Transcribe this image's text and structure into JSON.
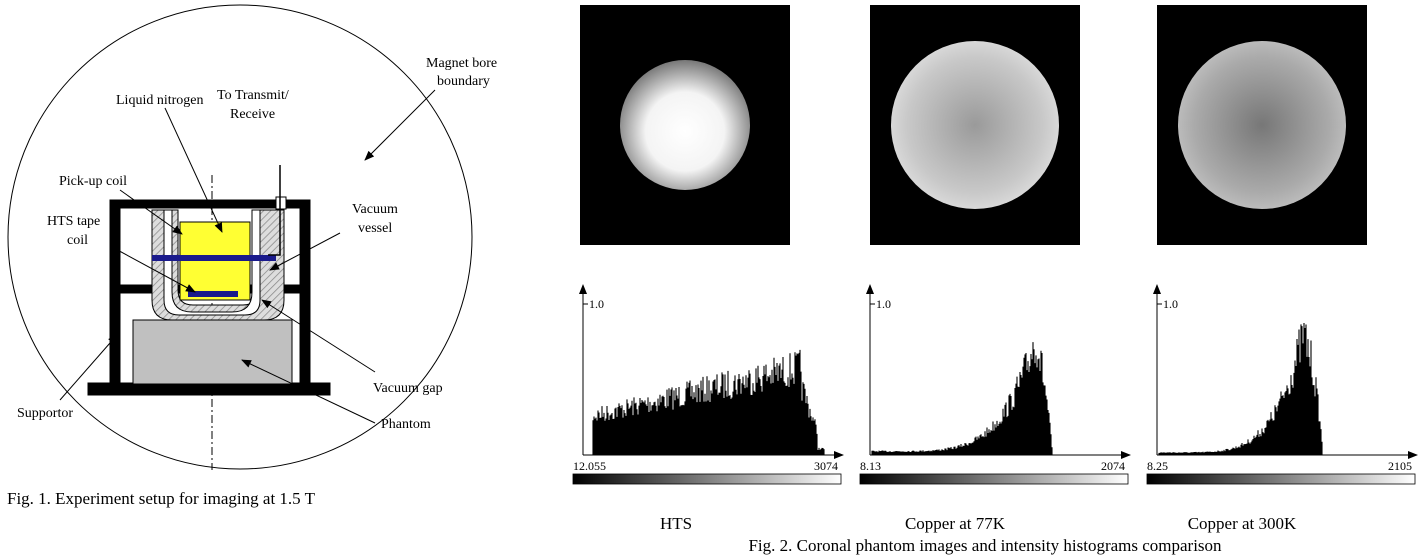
{
  "fig1": {
    "labels": {
      "magnet": [
        "Magnet bore",
        "boundary"
      ],
      "transmit": [
        "To Transmit/",
        "Receive"
      ],
      "nitrogen": "Liquid nitrogen",
      "pickup": "Pick-up coil",
      "hts": [
        "HTS tape",
        "coil"
      ],
      "vessel": [
        "Vacuum",
        "vessel"
      ],
      "gap": "Vacuum gap",
      "supportor": "Supportor",
      "phantom": "Phantom"
    },
    "caption": "Fig. 1. Experiment setup for imaging at 1.5 T"
  },
  "fig2": {
    "panels": [
      {
        "name": "HTS",
        "ymax": "1.0",
        "xmin": "12.055",
        "xmax": "3074"
      },
      {
        "name": "Copper at 77K",
        "ymax": "1.0",
        "xmin": "8.13",
        "xmax": "2074"
      },
      {
        "name": "Copper at 300K",
        "ymax": "1.0",
        "xmin": "8.25",
        "xmax": "2105"
      }
    ],
    "caption": "Fig. 2. Coronal phantom images and intensity histograms comparison"
  }
}
